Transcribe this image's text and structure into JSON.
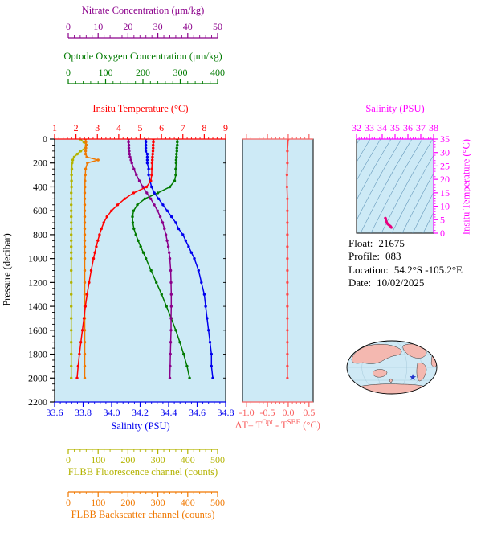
{
  "figure": {
    "page_bg": "#ffffff",
    "plot_bg": "#cdeaf6"
  },
  "axes": {
    "nitrate": {
      "title": "Nitrate Concentration (μm/kg)",
      "color": "#8b008b",
      "min": 0,
      "max": 50,
      "ticks": [
        "0",
        "10",
        "20",
        "30",
        "40",
        "50"
      ]
    },
    "oxygen": {
      "title": "Optode Oxygen Concentration (μm/kg)",
      "color": "#007a00",
      "min": 0,
      "max": 400,
      "ticks": [
        "0",
        "100",
        "200",
        "300",
        "400"
      ]
    },
    "temperature": {
      "title": "Insitu Temperature (°C)",
      "color": "#ff0000",
      "min": 1,
      "max": 9,
      "ticks": [
        "1",
        "2",
        "3",
        "4",
        "5",
        "6",
        "7",
        "8",
        "9"
      ]
    },
    "salinity": {
      "title": "Salinity (PSU)",
      "color": "#0000ee",
      "min": 33.6,
      "max": 34.8,
      "ticks": [
        "33.6",
        "33.8",
        "34.0",
        "34.2",
        "34.4",
        "34.6",
        "34.8"
      ]
    },
    "fluorescence": {
      "title": "FLBB Fluorescence channel (counts)",
      "color": "#b3b300",
      "min": 0,
      "max": 500,
      "ticks": [
        "0",
        "100",
        "200",
        "300",
        "400",
        "500"
      ]
    },
    "backscatter": {
      "title": "FLBB Backscatter channel (counts)",
      "color": "#f07800",
      "min": 0,
      "max": 500,
      "ticks": [
        "0",
        "100",
        "200",
        "300",
        "400",
        "500"
      ]
    },
    "pressure": {
      "title": "Pressure (decibar)",
      "color": "#000000",
      "min": 0,
      "max": 2200,
      "ticks": [
        "0",
        "200",
        "400",
        "600",
        "800",
        "1000",
        "1200",
        "1400",
        "1600",
        "1800",
        "2000",
        "2200"
      ]
    },
    "delta_t": {
      "title_parts": {
        "prefix": "ΔT= T",
        "sup1": "Opt",
        "mid": " - T",
        "sup2": "SBE",
        "suffix": " (°C)"
      },
      "color": "#f86060",
      "min": -1.1,
      "max": 0.6,
      "ticks": [
        "-1.0",
        "-0.5",
        "0.0",
        "0.5"
      ]
    },
    "ts_salinity": {
      "title": "Salinity (PSU)",
      "color": "#ff00ff",
      "min": 32,
      "max": 38,
      "ticks": [
        "32",
        "33",
        "34",
        "35",
        "36",
        "37",
        "38"
      ]
    },
    "ts_temperature": {
      "title": "Insitu Temperature (°C)",
      "color": "#ff00ff",
      "min": 0,
      "max": 35,
      "ticks": [
        "0",
        "5",
        "10",
        "15",
        "20",
        "25",
        "30",
        "35"
      ]
    }
  },
  "info": {
    "float_label": "Float:",
    "float_value": "21675",
    "profile_label": "Profile:",
    "profile_value": "083",
    "location_label": "Location:",
    "location_value": "54.2°S -105.2°E",
    "date_label": "Date:",
    "date_value": "10/02/2025"
  },
  "map": {
    "ocean_color": "#cfe9f5",
    "land_color": "#f4b8b0",
    "marker": "float-position-star",
    "marker_glyph": "★",
    "marker_color": "#2233cc"
  },
  "chart_data": [
    {
      "type": "line",
      "id": "main-profile",
      "ylabel": "Pressure (decibar)",
      "ylim": [
        0,
        2200
      ],
      "pressure": [
        0,
        25,
        50,
        75,
        100,
        125,
        150,
        175,
        200,
        250,
        300,
        350,
        400,
        450,
        500,
        550,
        600,
        650,
        700,
        750,
        800,
        850,
        900,
        950,
        1000,
        1100,
        1200,
        1300,
        1400,
        1500,
        1600,
        1700,
        1800,
        1900,
        2000
      ],
      "series": [
        {
          "name": "FLBB Fluorescence channel (counts)",
          "axis": "fluorescence",
          "color": "#b3b300",
          "values": [
            40,
            52,
            62,
            56,
            42,
            30,
            20,
            15,
            13,
            12,
            11,
            11,
            11,
            10,
            10,
            10,
            10,
            10,
            10,
            10,
            10,
            10,
            10,
            10,
            10,
            10,
            10,
            10,
            10,
            10,
            10,
            10,
            10,
            10,
            10
          ]
        },
        {
          "name": "FLBB Backscatter channel (counts)",
          "axis": "backscatter",
          "color": "#f07800",
          "values": [
            58,
            59,
            60,
            59,
            58,
            58,
            62,
            100,
            64,
            58,
            57,
            56,
            56,
            55,
            55,
            55,
            55,
            55,
            55,
            55,
            55,
            55,
            55,
            55,
            55,
            55,
            55,
            55,
            55,
            55,
            55,
            55,
            55,
            55,
            55
          ]
        },
        {
          "name": "Optode Oxygen Concentration (μm/kg)",
          "axis": "oxygen",
          "color": "#007a00",
          "values": [
            292,
            292,
            292,
            291,
            291,
            290,
            290,
            289,
            289,
            288,
            288,
            285,
            272,
            240,
            205,
            185,
            175,
            172,
            173,
            176,
            181,
            187,
            194,
            201,
            208,
            222,
            236,
            250,
            263,
            276,
            288,
            299,
            309,
            318,
            325
          ]
        },
        {
          "name": "Nitrate Concentration (μm/kg)",
          "axis": "nitrate",
          "color": "#8b008b",
          "values": [
            20.2,
            20.2,
            20.3,
            20.3,
            20.4,
            20.5,
            20.7,
            21.0,
            21.3,
            22.0,
            22.8,
            23.8,
            25.0,
            26.3,
            27.6,
            28.8,
            29.9,
            30.8,
            31.6,
            32.2,
            32.7,
            33.1,
            33.5,
            33.8,
            34.0,
            34.3,
            34.4,
            34.5,
            34.5,
            34.4,
            34.4,
            34.3,
            34.2,
            34.1,
            34.0
          ]
        },
        {
          "name": "Salinity (PSU)",
          "axis": "salinity",
          "color": "#0000ee",
          "values": [
            34.24,
            34.24,
            34.24,
            34.24,
            34.24,
            34.25,
            34.25,
            34.25,
            34.25,
            34.26,
            34.26,
            34.27,
            34.28,
            34.3,
            34.33,
            34.36,
            34.39,
            34.42,
            34.45,
            34.47,
            34.5,
            34.52,
            34.54,
            34.56,
            34.58,
            34.61,
            34.63,
            34.65,
            34.66,
            34.67,
            34.68,
            34.69,
            34.7,
            34.7,
            34.71
          ]
        },
        {
          "name": "Insitu Temperature (°C)",
          "axis": "temperature",
          "color": "#ff0000",
          "values": [
            5.62,
            5.62,
            5.61,
            5.61,
            5.6,
            5.59,
            5.58,
            5.57,
            5.56,
            5.55,
            5.54,
            5.5,
            5.3,
            4.7,
            4.28,
            3.95,
            3.66,
            3.45,
            3.3,
            3.19,
            3.1,
            3.02,
            2.95,
            2.88,
            2.82,
            2.71,
            2.61,
            2.52,
            2.44,
            2.37,
            2.3,
            2.23,
            2.16,
            2.1,
            2.05
          ]
        }
      ]
    },
    {
      "type": "line",
      "id": "delta-t",
      "color": "#ff4444",
      "xlim": [
        -1.1,
        0.6
      ],
      "xticks": [
        -1.0,
        -0.5,
        0.0,
        0.5
      ],
      "pressure": [
        0,
        100,
        200,
        300,
        400,
        500,
        600,
        700,
        800,
        900,
        1000,
        1100,
        1200,
        1300,
        1400,
        1500,
        1600,
        1700,
        1800,
        1900,
        2000
      ],
      "values": [
        0.0,
        -0.02,
        -0.02,
        -0.03,
        -0.03,
        -0.02,
        -0.02,
        -0.02,
        -0.02,
        -0.02,
        -0.02,
        -0.02,
        -0.02,
        -0.02,
        -0.02,
        -0.02,
        -0.02,
        -0.02,
        -0.02,
        -0.02,
        -0.02
      ]
    },
    {
      "type": "scatter",
      "id": "ts-diagram",
      "color": "#e8007e",
      "xlabel": "Salinity (PSU)",
      "xlim": [
        32,
        38
      ],
      "ylabel": "Insitu Temperature (°C)",
      "ylim": [
        0,
        35
      ],
      "points": [
        [
          34.24,
          5.62
        ],
        [
          34.24,
          5.6
        ],
        [
          34.25,
          5.57
        ],
        [
          34.26,
          5.54
        ],
        [
          34.28,
          5.3
        ],
        [
          34.3,
          4.7
        ],
        [
          34.33,
          4.28
        ],
        [
          34.36,
          3.95
        ],
        [
          34.39,
          3.66
        ],
        [
          34.42,
          3.45
        ],
        [
          34.45,
          3.3
        ],
        [
          34.5,
          3.1
        ],
        [
          34.54,
          2.95
        ],
        [
          34.58,
          2.82
        ],
        [
          34.63,
          2.61
        ],
        [
          34.66,
          2.44
        ],
        [
          34.68,
          2.3
        ],
        [
          34.7,
          2.16
        ],
        [
          34.71,
          2.05
        ]
      ]
    }
  ]
}
